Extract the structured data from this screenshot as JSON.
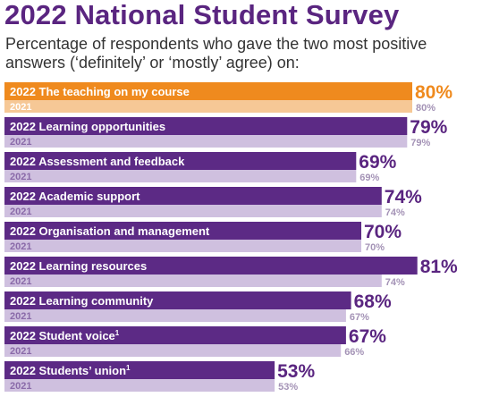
{
  "header": {
    "title": "2022 National Student Survey",
    "subtitle": "Percentage of respondents who gave the two most positive answers (‘definitely’ or ‘mostly’ agree) on:"
  },
  "colors": {
    "title": "#5a2580",
    "bar_2022": "#5c2a85",
    "bar_2021": "#cfc0df",
    "highlight_2022": "#ef8a1e",
    "highlight_2021": "#f6c896",
    "value_2022": "#5a2580",
    "highlight_value": "#ef8a1e",
    "value_2021": "#a493b6",
    "label_2021": "#8a6aa9"
  },
  "chart_data": {
    "type": "bar",
    "orientation": "horizontal",
    "series": [
      {
        "name": "2022",
        "values": [
          80,
          79,
          69,
          74,
          70,
          81,
          68,
          67,
          53
        ]
      },
      {
        "name": "2021",
        "values": [
          80,
          79,
          69,
          74,
          70,
          74,
          67,
          66,
          53
        ]
      }
    ],
    "categories": [
      "The teaching on my course",
      "Learning opportunities",
      "Assessment and feedback",
      "Academic support",
      "Organisation and management",
      "Learning resources",
      "Learning community",
      "Student voice",
      "Students’ union"
    ],
    "footnotes": [
      "",
      "",
      "",
      "",
      "",
      "",
      "",
      "1",
      "1"
    ],
    "highlight_index": 0,
    "value_suffix": "%",
    "xlim": [
      0,
      100
    ]
  }
}
